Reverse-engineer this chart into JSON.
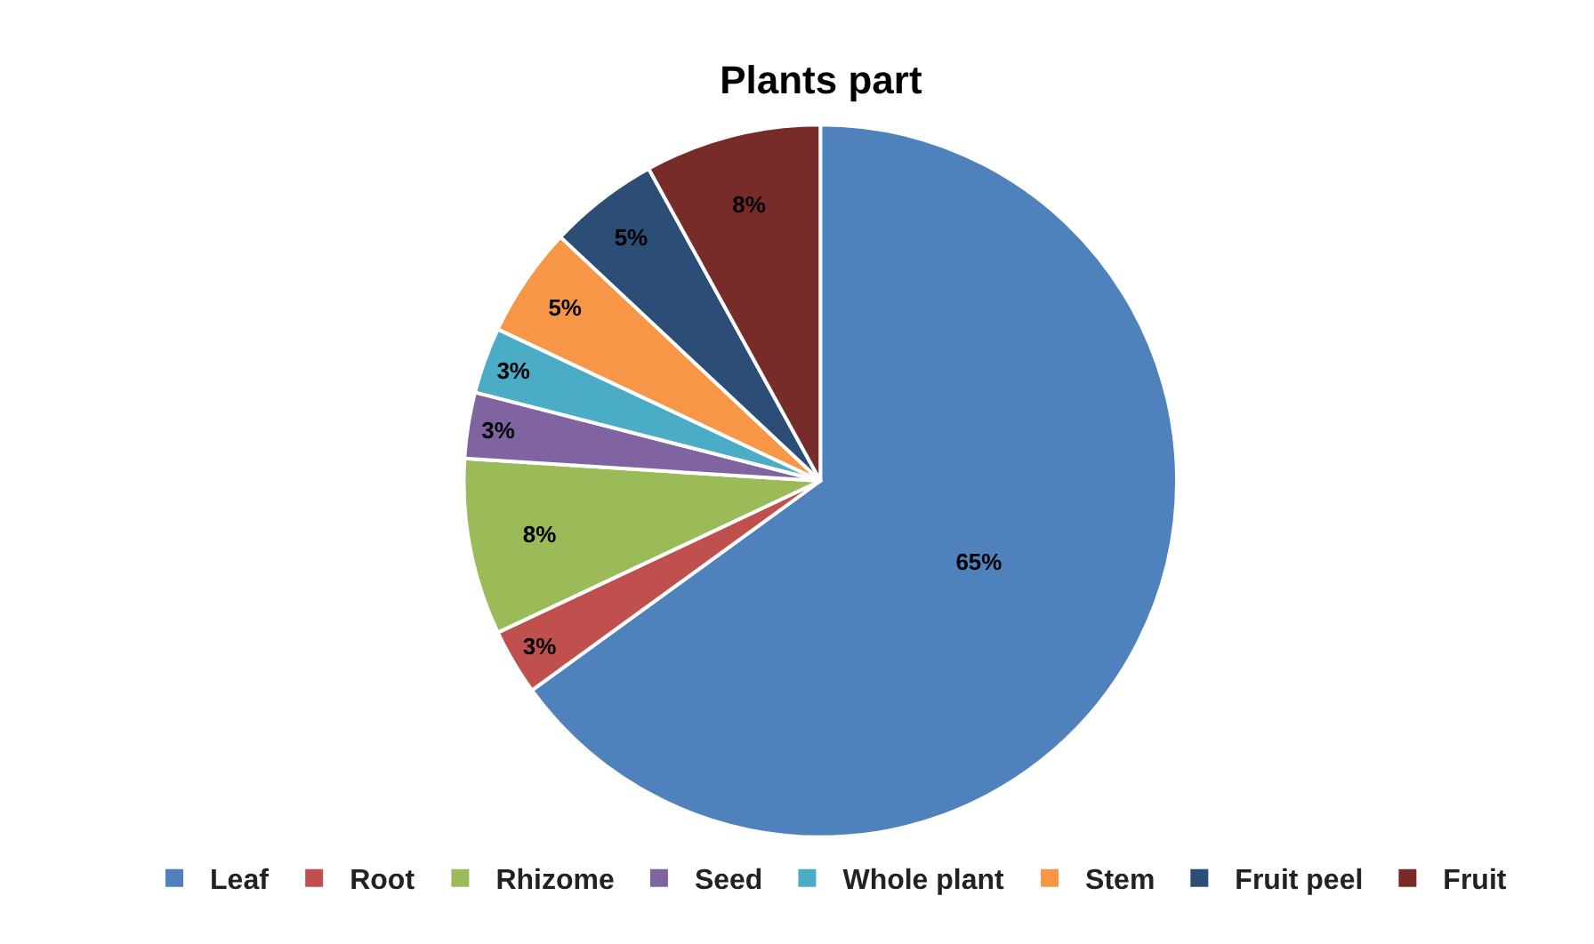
{
  "chart_data": {
    "type": "pie",
    "title": "Plants part",
    "categories": [
      "Leaf",
      "Root",
      "Rhizome",
      "Seed",
      "Whole plant",
      "Stem",
      "Fruit peel",
      "Fruit"
    ],
    "values": [
      65,
      3,
      8,
      3,
      3,
      5,
      5,
      8
    ],
    "colors": [
      "#4f81bd",
      "#c0504d",
      "#9bbb59",
      "#8064a2",
      "#4bacc6",
      "#f79646",
      "#2c4d75",
      "#772c2a"
    ],
    "value_labels": [
      "65%",
      "3%",
      "8%",
      "3%",
      "3%",
      "5%",
      "5%",
      "8%"
    ],
    "legend": "bottom"
  }
}
